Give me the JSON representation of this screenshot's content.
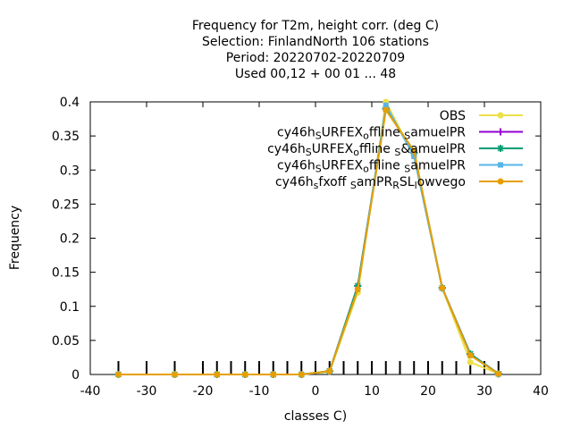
{
  "chart_data": {
    "type": "line",
    "title_lines": [
      "Frequency  for T2m, height corr. (deg C)",
      "Selection: FinlandNorth    106 stations",
      "Period: 20220702-20220709",
      "Used  00,12  + 00 01 ... 48"
    ],
    "xlabel": "classes C)",
    "ylabel": "Frequency",
    "xlim": [
      -40,
      40
    ],
    "ylim": [
      0,
      0.4
    ],
    "xticks": [
      "-40",
      "-30",
      "-20",
      "-10",
      "0",
      "10",
      "20",
      "30",
      "40"
    ],
    "yticks": [
      "0",
      "0.05",
      "0.1",
      "0.15",
      "0.2",
      "0.25",
      "0.3",
      "0.35",
      "0.4"
    ],
    "grid": false,
    "legend_position": "top-right",
    "class_boundaries": [
      -35,
      -30,
      -25,
      -20,
      -17.5,
      -15,
      -12.5,
      -10,
      -7.5,
      -5,
      -2.5,
      0,
      2.5,
      5,
      7.5,
      10,
      12.5,
      15,
      17.5,
      20,
      22.5,
      25,
      27.5,
      30,
      32.5
    ],
    "series": [
      {
        "name": "OBS",
        "color": "#ede04a",
        "marker": "circle",
        "x": [
          -35,
          -25,
          -17.5,
          -12.5,
          -7.5,
          -2.5,
          2.5,
          7.5,
          12.5,
          17.5,
          22.5,
          27.5,
          32.5
        ],
        "y": [
          0,
          0,
          0,
          0,
          0,
          0,
          0.004,
          0.12,
          0.4,
          0.32,
          0.127,
          0.018,
          0.001
        ]
      },
      {
        "name": "cy46h_SURFEX_offline_SamuelPR",
        "label": {
          "parts": [
            [
              "cy46h",
              "n"
            ],
            [
              "S",
              "sub"
            ],
            [
              "URFEX",
              "n"
            ],
            [
              "o",
              "sub"
            ],
            [
              "ffline ",
              "n"
            ],
            [
              "S",
              "sub"
            ],
            [
              "amuelPR",
              "n"
            ]
          ]
        },
        "color": "#9400d3",
        "marker": "plus",
        "x": [
          -35,
          -25,
          -17.5,
          -12.5,
          -7.5,
          -2.5,
          2.5,
          7.5,
          12.5,
          17.5,
          22.5,
          27.5,
          32.5
        ],
        "y": [
          0,
          0,
          0,
          0,
          0,
          0,
          0.005,
          0.13,
          0.39,
          0.325,
          0.127,
          0.03,
          0.001
        ]
      },
      {
        "name": "cy46h_SURFEX_offline_S&amuelPR",
        "label": {
          "parts": [
            [
              "cy46h",
              "n"
            ],
            [
              "S",
              "sub"
            ],
            [
              "URFEX",
              "n"
            ],
            [
              "o",
              "sub"
            ],
            [
              "ffline ",
              "n"
            ],
            [
              "S",
              "sub"
            ],
            [
              "&amuelPR",
              "n"
            ]
          ]
        },
        "color": "#009e73",
        "marker": "star",
        "x": [
          -35,
          -25,
          -17.5,
          -12.5,
          -7.5,
          -2.5,
          2.5,
          7.5,
          12.5,
          17.5,
          22.5,
          27.5,
          32.5
        ],
        "y": [
          0,
          0,
          0,
          0,
          0,
          0,
          0.005,
          0.13,
          0.39,
          0.325,
          0.127,
          0.03,
          0.001
        ]
      },
      {
        "name": "cy46h_SURFEX_offline_SamuelPR (3)",
        "label": {
          "parts": [
            [
              "cy46h",
              "n"
            ],
            [
              "S",
              "sub"
            ],
            [
              "URFEX",
              "n"
            ],
            [
              "o",
              "sub"
            ],
            [
              "ffline ",
              "n"
            ],
            [
              "S",
              "sub"
            ],
            [
              "amuelPR",
              "n"
            ]
          ]
        },
        "color": "#56b4e9",
        "marker": "box",
        "x": [
          -35,
          -25,
          -17.5,
          -12.5,
          -7.5,
          -2.5,
          2.5,
          7.5,
          12.5,
          17.5,
          22.5,
          27.5,
          32.5
        ],
        "y": [
          0,
          0,
          0,
          0,
          0,
          0,
          0.005,
          0.125,
          0.395,
          0.32,
          0.127,
          0.028,
          0.001
        ]
      },
      {
        "name": "cy46h_sfxoff_SamPR_RSL_lowvego",
        "label": {
          "parts": [
            [
              "cy46h",
              "n"
            ],
            [
              "s",
              "sub"
            ],
            [
              "fxoff ",
              "n"
            ],
            [
              "S",
              "sub"
            ],
            [
              "amPR",
              "n"
            ],
            [
              "R",
              "sub"
            ],
            [
              "SL",
              "n"
            ],
            [
              "l",
              "sub"
            ],
            [
              "owvego",
              "n"
            ]
          ]
        },
        "color": "#e69f00",
        "marker": "circle",
        "x": [
          -35,
          -25,
          -17.5,
          -12.5,
          -7.5,
          -2.5,
          2.5,
          7.5,
          12.5,
          17.5,
          22.5,
          27.5,
          32.5
        ],
        "y": [
          0,
          0,
          0,
          0,
          0,
          0,
          0.005,
          0.125,
          0.388,
          0.328,
          0.127,
          0.028,
          0.001
        ]
      }
    ]
  }
}
